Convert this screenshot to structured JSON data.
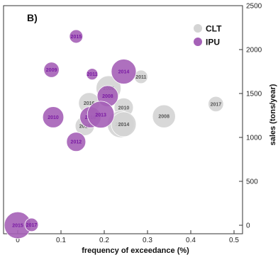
{
  "chart_data": {
    "type": "scatter",
    "panel_label": "B)",
    "xlabel": "frequency of exceedance (%)",
    "ylabel": "sales (tons/year)",
    "xlim": [
      0,
      0.5
    ],
    "ylim": [
      0,
      2500
    ],
    "x_ticks": [
      0,
      0.1,
      0.2,
      0.3,
      0.4,
      0.5
    ],
    "y_ticks": [
      0,
      500,
      1000,
      1500,
      2000,
      2500
    ],
    "x_tick_labels": [
      "0",
      "0.1",
      "0.2",
      "0.3",
      "0.4",
      "0.5"
    ],
    "y_tick_labels": [
      "0",
      "500",
      "1000",
      "1500",
      "2000",
      "2500"
    ],
    "grid": false,
    "legend_position": "top-right",
    "series": [
      {
        "name": "CLT",
        "color": "#d4d4d4",
        "label_color": "#555555",
        "points": [
          {
            "label": "2009",
            "x": 0.21,
            "y": 1560,
            "size": 13
          },
          {
            "label": "2016",
            "x": 0.165,
            "y": 1390,
            "size": 11
          },
          {
            "label": "2010",
            "x": 0.245,
            "y": 1340,
            "size": 10
          },
          {
            "label": "2011",
            "x": 0.285,
            "y": 1690,
            "size": 7
          },
          {
            "label": "2008",
            "x": 0.338,
            "y": 1240,
            "size": 12
          },
          {
            "label": "2012",
            "x": 0.238,
            "y": 1150,
            "size": 14
          },
          {
            "label": "2014",
            "x": 0.245,
            "y": 1150,
            "size": 13
          },
          {
            "label": "2013",
            "x": 0.155,
            "y": 1130,
            "size": 10
          },
          {
            "label": "2017",
            "x": 0.458,
            "y": 1380,
            "size": 8
          }
        ]
      },
      {
        "name": "IPU",
        "color": "#a561b7",
        "label_color": "#7a1aa3",
        "points": [
          {
            "label": "2015",
            "x": 0.135,
            "y": 2150,
            "size": 7
          },
          {
            "label": "2009",
            "x": 0.078,
            "y": 1770,
            "size": 8
          },
          {
            "label": "2011",
            "x": 0.172,
            "y": 1720,
            "size": 6
          },
          {
            "label": "2014",
            "x": 0.245,
            "y": 1750,
            "size": 13
          },
          {
            "label": "2008",
            "x": 0.208,
            "y": 1470,
            "size": 11
          },
          {
            "label": "2010",
            "x": 0.082,
            "y": 1230,
            "size": 11
          },
          {
            "label": "2016",
            "x": 0.168,
            "y": 1230,
            "size": 11
          },
          {
            "label": "2013",
            "x": 0.192,
            "y": 1260,
            "size": 14
          },
          {
            "label": "2012",
            "x": 0.135,
            "y": 950,
            "size": 10
          },
          {
            "label": "2015",
            "x": 0.0,
            "y": 0,
            "size": 14
          },
          {
            "label": "2017",
            "x": 0.032,
            "y": 5,
            "size": 7
          }
        ]
      }
    ]
  }
}
